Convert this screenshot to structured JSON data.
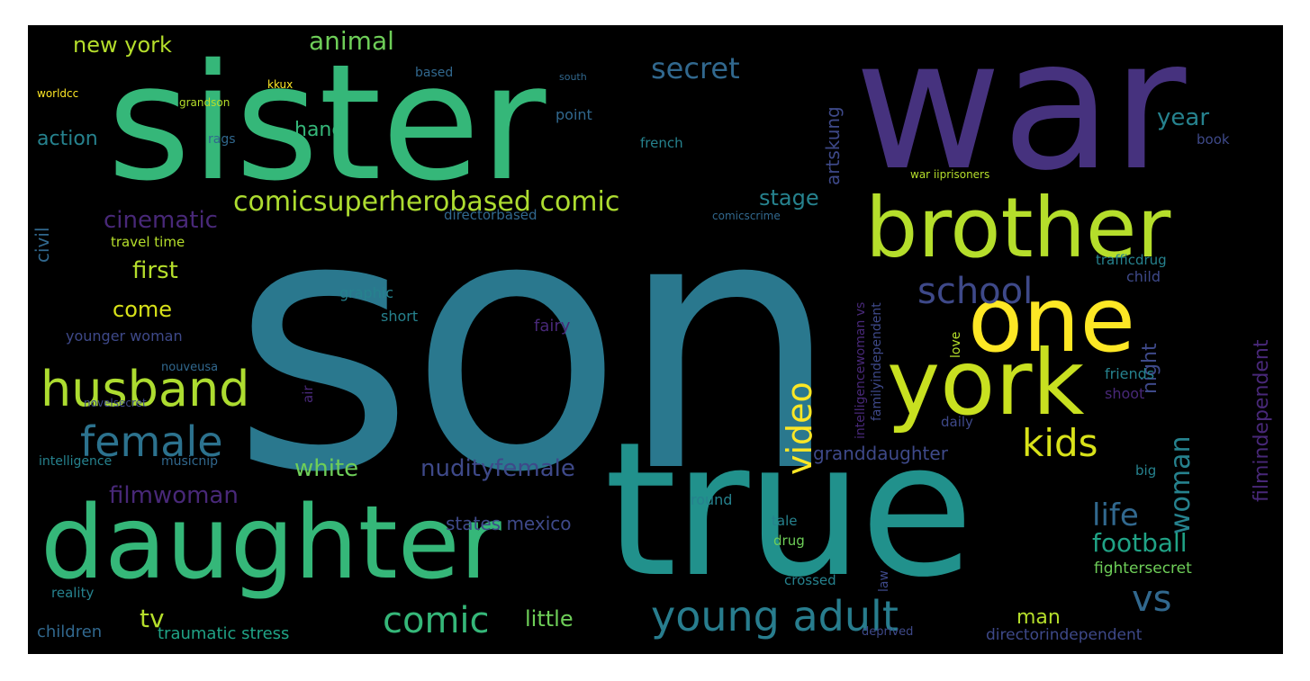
{
  "word_cloud": {
    "background": "#000000",
    "palette": [
      "#440154",
      "#482878",
      "#3e4989",
      "#31688e",
      "#26828e",
      "#1f9e89",
      "#35b779",
      "#6ece58",
      "#b5de2b",
      "#fde725"
    ],
    "words": {
      "son": "son",
      "sister": "sister",
      "war": "war",
      "true": "true",
      "daughter": "daughter",
      "brother": "brother",
      "one": "one",
      "york": "york",
      "husband": "husband",
      "female": "female",
      "school": "school",
      "young_adult": "young adult",
      "comic": "comic",
      "kids": "kids",
      "video": "video",
      "vs": "vs",
      "woman": "woman",
      "comicsuperherobased_comic": "comicsuperherobased comic",
      "secret": "secret",
      "animal": "animal",
      "new_york": "new york",
      "life": "life",
      "football": "football",
      "white": "white",
      "nudityfemale": "nudityfemale",
      "filmwoman": "filmwoman",
      "cinematic": "cinematic",
      "first": "first",
      "come": "come",
      "tv": "tv",
      "little": "little",
      "action": "action",
      "hand": "hand",
      "stage": "stage",
      "year": "year",
      "man": "man",
      "granddaughter": "granddaughter",
      "filmindependent": "filmindependent",
      "night": "night",
      "states_mexico": "states mexico",
      "traumatic_stress": "traumatic stress",
      "children": "children",
      "directorindependent": "directorindependent",
      "fightersecret": "fightersecret",
      "artskung": "artskung",
      "civil": "civil",
      "travel_time": "travel time",
      "graphic": "graphic",
      "short": "short",
      "fairy": "fairy",
      "younger_woman": "younger woman",
      "directorbased": "directorbased",
      "comicscrime": "comicscrime",
      "trafficdrug": "trafficdrug",
      "child": "child",
      "friends": "friends",
      "shoot": "shoot",
      "daily": "daily",
      "big": "big",
      "round": "round",
      "tale": "tale",
      "drug": "drug",
      "crossed": "crossed",
      "law": "law",
      "reality": "reality",
      "book": "book",
      "point": "point",
      "french": "french",
      "based": "based",
      "rags": "rags",
      "intelligence": "intelligence",
      "musicnip": "musicnip",
      "nouveusa": "nouveusa",
      "novelsecret": "novelsecret",
      "familyindependent": "familyindependent",
      "intelligencewoman_vs": "intelligencewoman vs",
      "war_iiprisoners": "war iiprisoners",
      "love": "love",
      "air": "air",
      "deprived": "deprived",
      "worldcc": "worldcc",
      "grandson": "grandson",
      "kkux": "kkux",
      "south": "south"
    }
  }
}
